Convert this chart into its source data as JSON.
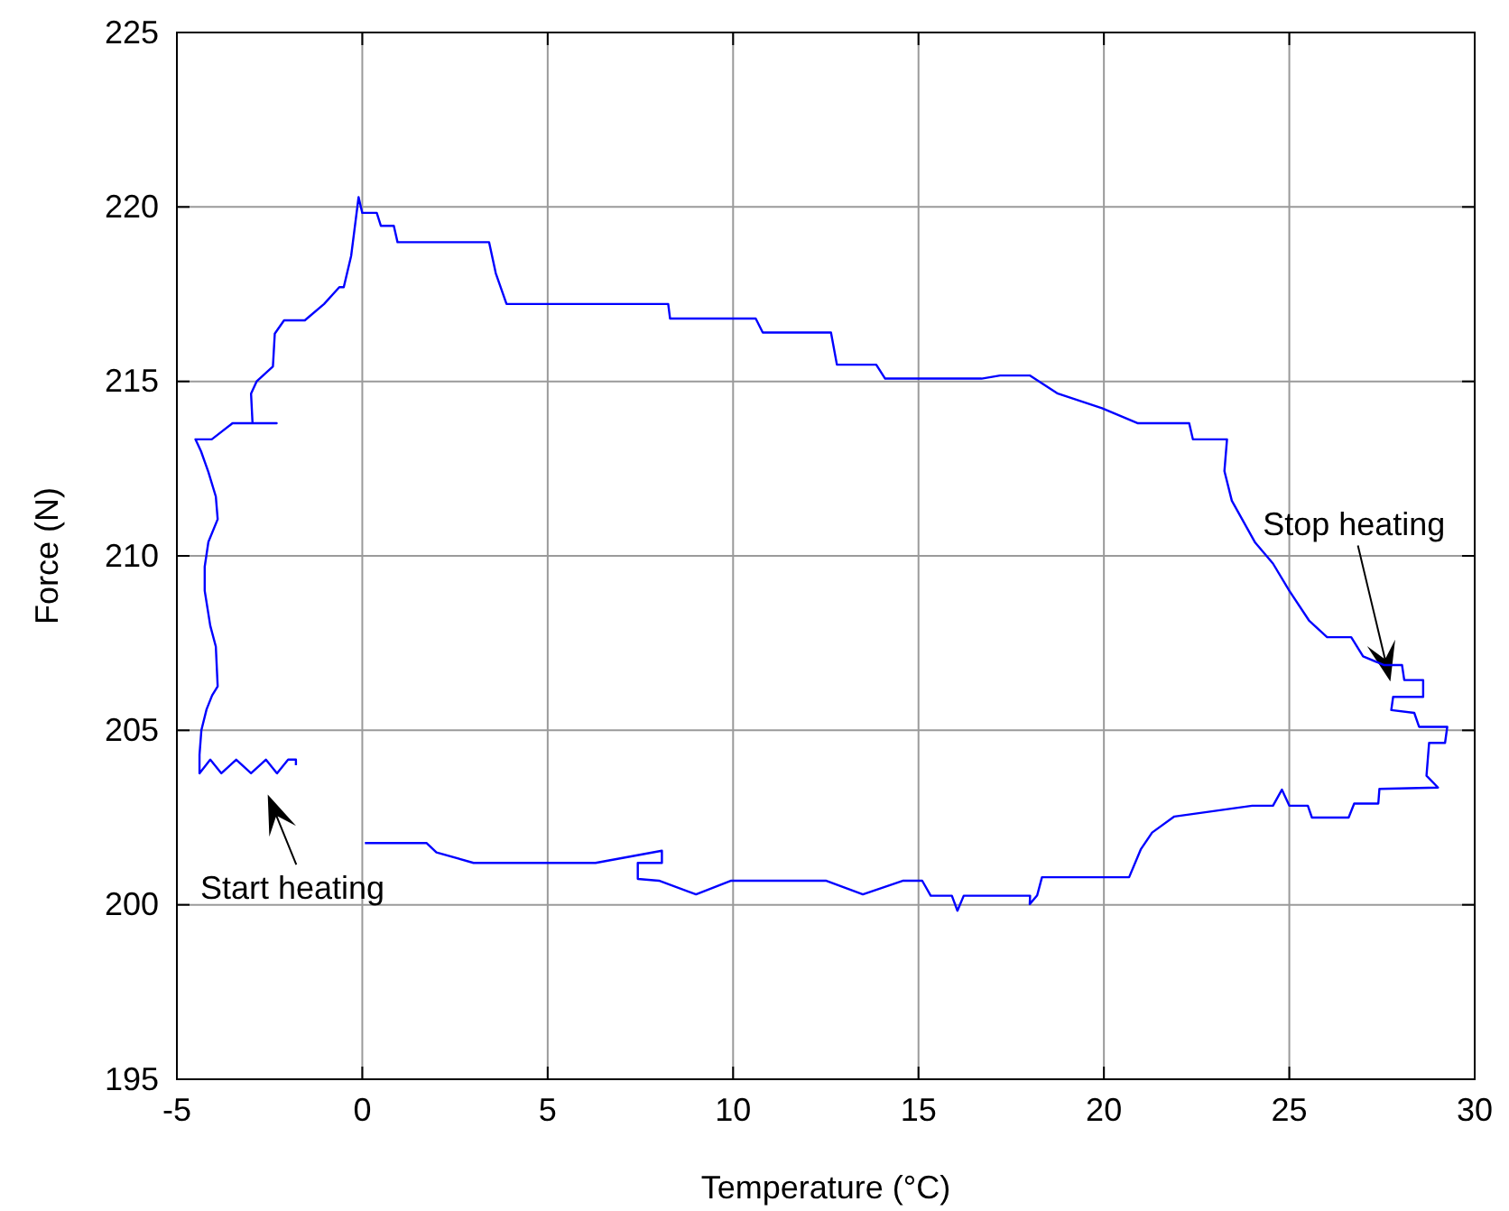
{
  "chart_data": {
    "type": "line",
    "xlabel": "Temperature (°C)",
    "ylabel": "Force (N)",
    "xlim": [
      -5,
      30
    ],
    "xticks": [
      -5,
      0,
      5,
      10,
      15,
      20,
      25,
      30
    ],
    "ylim": [
      195,
      225
    ],
    "yticks": [
      195,
      200,
      205,
      210,
      215,
      220,
      225
    ],
    "grid": true,
    "line_style": "solid",
    "marker": "none",
    "series": [
      {
        "color": "#0000ff",
        "x": [
          -1.79,
          -1.79,
          -2.0,
          -2.3,
          -2.6,
          -3.0,
          -3.4,
          -3.8,
          -4.1,
          -4.39,
          -4.39,
          -4.34,
          -4.2,
          -4.05,
          -3.9,
          -3.95,
          -4.1,
          -4.25,
          -4.25,
          -4.15,
          -3.9,
          -3.95,
          -4.15,
          -4.35,
          -4.5,
          -4.5,
          -4.06,
          -3.5,
          -2.96,
          -2.31,
          -2.96,
          -3.0,
          -2.85,
          -2.41,
          -2.36,
          -2.11,
          -1.55,
          -1.03,
          -0.62,
          -0.5,
          -0.3,
          -0.1,
          0.0,
          0.39,
          0.5,
          0.85,
          0.95,
          3.42,
          3.6,
          3.89,
          6.73,
          8.25,
          8.3,
          10.61,
          10.8,
          12.64,
          12.8,
          13.86,
          14.1,
          16.7,
          17.2,
          18.0,
          18.74,
          19.95,
          20.92,
          22.3,
          22.4,
          23.32,
          23.25,
          23.45,
          24.08,
          24.56,
          25.0,
          25.53,
          26.02,
          26.67,
          26.99,
          27.56,
          28.04,
          28.1,
          28.61,
          28.61,
          27.8,
          27.75,
          28.37,
          28.5,
          29.26,
          29.2,
          28.77,
          28.7,
          29.01,
          27.43,
          27.4,
          26.75,
          26.6,
          25.61,
          25.5,
          25.0,
          24.8,
          24.56,
          24.0,
          21.9,
          21.3,
          21.0,
          20.68,
          18.33,
          18.2,
          18.0,
          18.01,
          16.22,
          16.05,
          15.9,
          15.33,
          15.1,
          14.59,
          13.5,
          12.5,
          11.99,
          9.95,
          9.0,
          8.0,
          7.43,
          7.43,
          8.08,
          8.08,
          6.29,
          4.5,
          3.0,
          2.0,
          1.73,
          0.07
        ],
        "values": [
          204.0,
          204.16,
          204.16,
          203.77,
          204.16,
          203.77,
          204.16,
          203.77,
          204.16,
          203.77,
          204.3,
          205.0,
          205.6,
          206.0,
          206.26,
          207.4,
          208.0,
          209.0,
          209.69,
          210.4,
          211.05,
          211.7,
          212.4,
          213.0,
          213.34,
          213.34,
          213.34,
          213.8,
          213.8,
          213.8,
          213.8,
          214.65,
          215.0,
          215.43,
          216.37,
          216.75,
          216.75,
          217.22,
          217.7,
          217.7,
          218.6,
          220.28,
          219.83,
          219.83,
          219.46,
          219.46,
          218.99,
          218.99,
          218.1,
          217.22,
          217.22,
          217.22,
          216.8,
          216.8,
          216.4,
          216.4,
          215.48,
          215.48,
          215.08,
          215.08,
          215.17,
          215.17,
          214.66,
          214.23,
          213.8,
          213.8,
          213.34,
          213.34,
          212.43,
          211.58,
          210.38,
          209.78,
          209.0,
          208.15,
          207.67,
          207.67,
          207.12,
          206.87,
          206.87,
          206.44,
          206.44,
          205.96,
          205.96,
          205.58,
          205.5,
          205.1,
          205.1,
          204.64,
          204.64,
          203.7,
          203.36,
          203.32,
          202.9,
          202.9,
          202.5,
          202.5,
          202.84,
          202.84,
          203.3,
          202.84,
          202.84,
          202.53,
          202.07,
          201.6,
          200.79,
          200.79,
          200.27,
          200.02,
          200.26,
          200.26,
          199.83,
          200.26,
          200.26,
          200.69,
          200.69,
          200.3,
          200.69,
          200.69,
          200.69,
          200.3,
          200.69,
          200.74,
          201.2,
          201.2,
          201.55,
          201.2,
          201.2,
          201.2,
          201.5,
          201.77,
          201.77
        ]
      }
    ],
    "annotations": [
      "Start heating",
      "Stop heating"
    ]
  }
}
